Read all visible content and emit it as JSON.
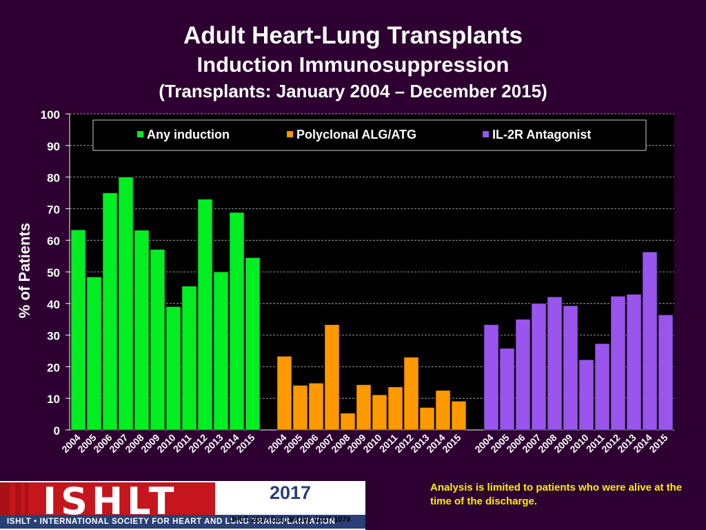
{
  "header": {
    "title": "Adult Heart-Lung Transplants",
    "subtitle": "Induction Immunosuppression",
    "range": "(Transplants: January 2004 – December 2015)"
  },
  "chart_data": {
    "type": "bar",
    "ylabel": "% of Patients",
    "ylim": [
      0,
      100
    ],
    "yticks": [
      0,
      10,
      20,
      30,
      40,
      50,
      60,
      70,
      80,
      90,
      100
    ],
    "grid": "dashed horizontal",
    "legend_position": "top",
    "categories": [
      "2004",
      "2005",
      "2006",
      "2007",
      "2008",
      "2009",
      "2010",
      "2011",
      "2012",
      "2013",
      "2014",
      "2015"
    ],
    "series": [
      {
        "name": "Any induction",
        "color": "#00ee22",
        "values": [
          63.3,
          48.4,
          75.0,
          80.0,
          63.2,
          57.1,
          39.0,
          45.5,
          73.0,
          50.0,
          68.8,
          54.5
        ]
      },
      {
        "name": "Polyclonal ALG/ATG",
        "color": "#ff9900",
        "values": [
          23.3,
          14.1,
          14.8,
          33.3,
          5.3,
          14.3,
          11.1,
          13.6,
          23.0,
          7.1,
          12.5,
          9.1
        ]
      },
      {
        "name": "IL-2R Antagonist",
        "color": "#9955ee",
        "values": [
          33.3,
          25.8,
          35.0,
          40.0,
          42.1,
          39.3,
          22.2,
          27.3,
          42.3,
          42.9,
          56.3,
          36.4
        ]
      }
    ]
  },
  "footer": {
    "logo_text": "ISHLT",
    "logo_strip": "ISHLT • INTERNATIONAL SOCIETY FOR HEART AND LUNG TRANSPLANTATION",
    "year": "2017",
    "citation": "JHLT. 2017 Oct; 36(10): 1037-1079",
    "note": "Analysis is limited to patients who were alive at the time of the discharge."
  }
}
